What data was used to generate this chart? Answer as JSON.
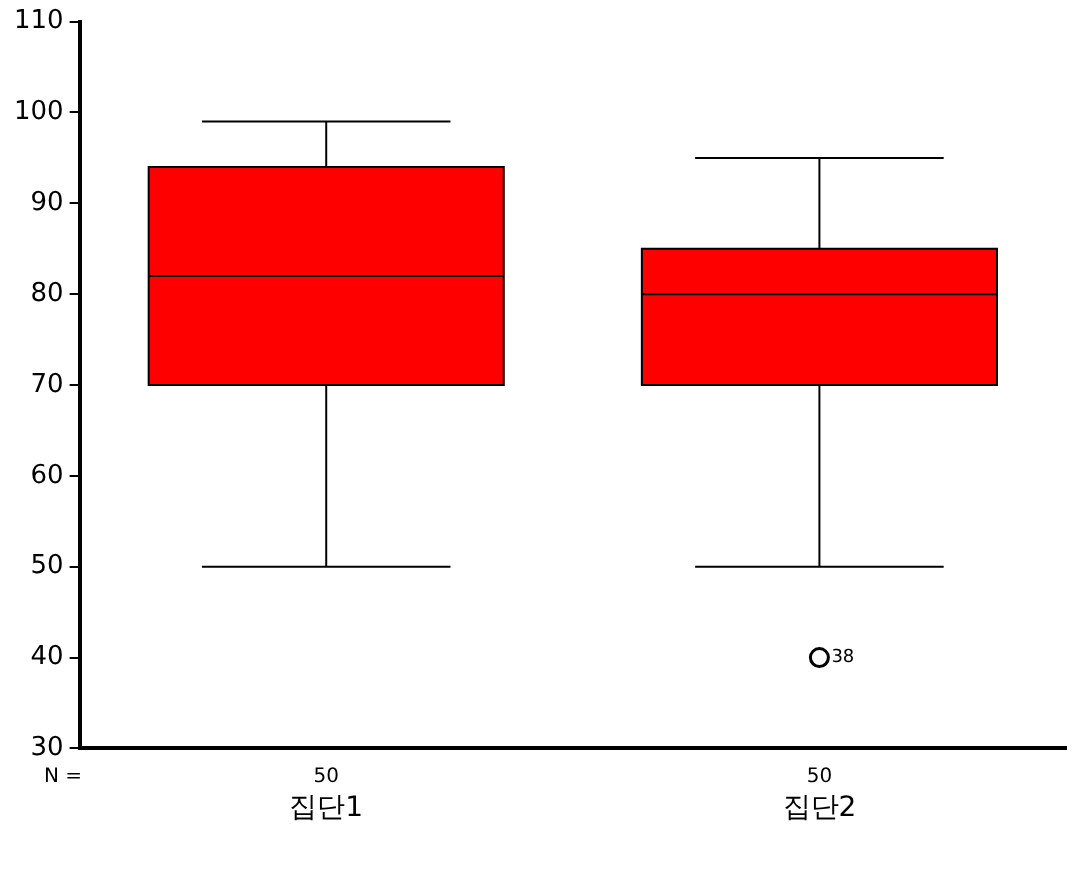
{
  "chart_data": {
    "type": "box",
    "categories": [
      "집단1",
      "집단2"
    ],
    "color": "#ff0000",
    "boxes": [
      {
        "low": 50,
        "q1": 70,
        "median": 82,
        "q3": 94,
        "high": 99
      },
      {
        "low": 50,
        "q1": 70,
        "median": 80,
        "q3": 85,
        "high": 95,
        "outliers": [
          40
        ]
      }
    ],
    "ylim": [
      30,
      110
    ],
    "yticks": [
      30,
      40,
      50,
      60,
      70,
      80,
      90,
      100,
      110
    ],
    "grid": false,
    "legend": false,
    "annotations": [
      "N =",
      "50",
      "50",
      "38"
    ]
  }
}
